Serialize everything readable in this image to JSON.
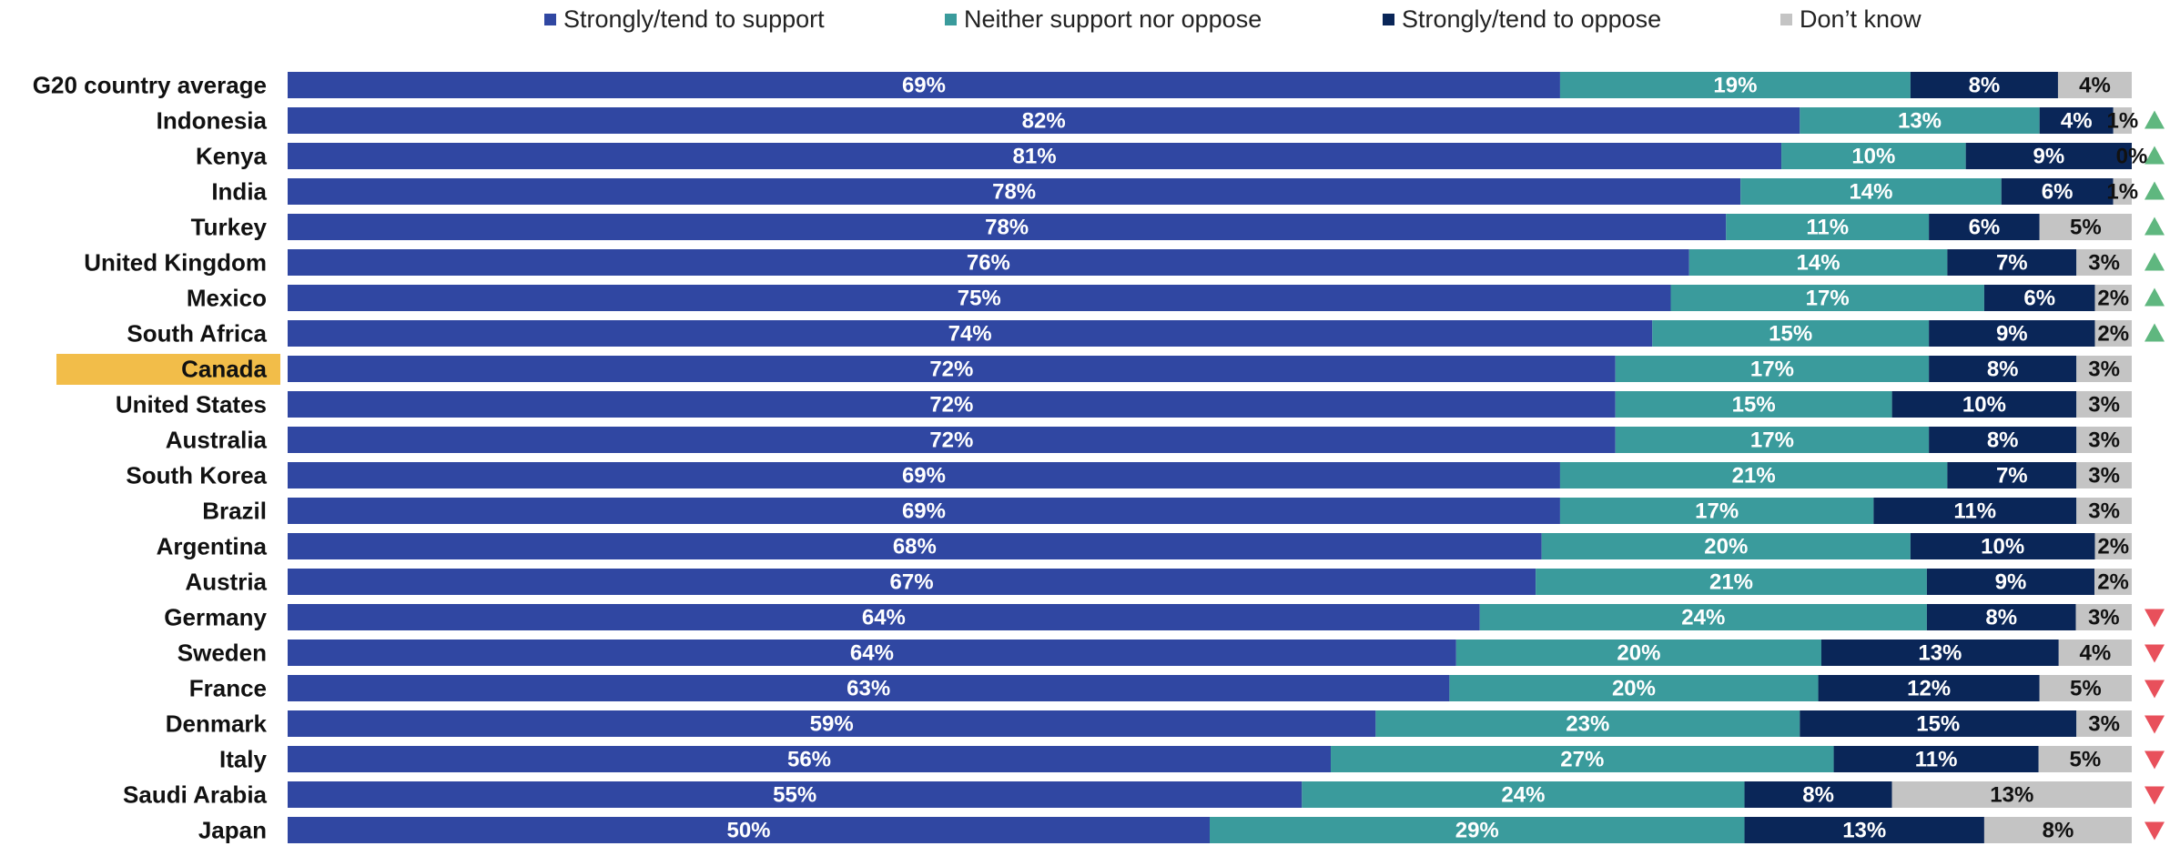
{
  "chart_data": {
    "type": "bar",
    "orientation": "horizontal",
    "stacked": true,
    "percent_stacked": true,
    "legend_position": "top",
    "highlight_category": "Canada",
    "series": [
      {
        "name": "Strongly/tend to support",
        "color": "#3047a2",
        "values": [
          69,
          82,
          81,
          78,
          78,
          76,
          75,
          74,
          72,
          72,
          72,
          69,
          69,
          68,
          67,
          64,
          64,
          63,
          59,
          56,
          55,
          50
        ],
        "labels": [
          "69%",
          "82%",
          "81%",
          "78%",
          "78%",
          "76%",
          "75%",
          "74%",
          "72%",
          "72%",
          "72%",
          "69%",
          "69%",
          "68%",
          "67%",
          "64%",
          "64%",
          "63%",
          "59%",
          "56%",
          "55%",
          "50%"
        ]
      },
      {
        "name": "Neither support nor oppose",
        "color": "#3a9b9c",
        "values": [
          19,
          13,
          10,
          14,
          11,
          14,
          17,
          15,
          17,
          15,
          17,
          21,
          17,
          20,
          21,
          24,
          20,
          20,
          23,
          27,
          24,
          29
        ],
        "labels": [
          "19%",
          "13%",
          "10%",
          "14%",
          "11%",
          "14%",
          "17%",
          "15%",
          "17%",
          "15%",
          "17%",
          "21%",
          "17%",
          "20%",
          "21%",
          "24%",
          "20%",
          "20%",
          "23%",
          "27%",
          "24%",
          "29%"
        ]
      },
      {
        "name": "Strongly/tend to oppose",
        "color": "#0a2658",
        "values": [
          8,
          4,
          9,
          6,
          6,
          7,
          6,
          9,
          8,
          10,
          8,
          7,
          11,
          10,
          9,
          8,
          13,
          12,
          15,
          11,
          8,
          13
        ],
        "labels": [
          "8%",
          "4%",
          "9%",
          "6%",
          "6%",
          "7%",
          "6%",
          "9%",
          "8%",
          "10%",
          "8%",
          "7%",
          "11%",
          "10%",
          "9%",
          "8%",
          "13%",
          "12%",
          "15%",
          "11%",
          "8%",
          "13%"
        ]
      },
      {
        "name": "Don’t know",
        "color": "#c4c4c4",
        "values": [
          4,
          1,
          0,
          1,
          5,
          3,
          2,
          2,
          3,
          3,
          3,
          3,
          3,
          2,
          2,
          3,
          4,
          5,
          3,
          5,
          13,
          8
        ],
        "labels": [
          "4%",
          "1%",
          "0%",
          "1%",
          "5%",
          "3%",
          "2%",
          "2%",
          "3%",
          "3%",
          "3%",
          "3%",
          "3%",
          "2%",
          "2%",
          "3%",
          "4%",
          "5%",
          "3%",
          "5%",
          "13%",
          "8%"
        ]
      }
    ],
    "categories": [
      "G20 country average",
      "Indonesia",
      "Kenya",
      "India",
      "Turkey",
      "United Kingdom",
      "Mexico",
      "South Africa",
      "Canada",
      "United States",
      "Australia",
      "South Korea",
      "Brazil",
      "Argentina",
      "Austria",
      "Germany",
      "Sweden",
      "France",
      "Denmark",
      "Italy",
      "Saudi Arabia",
      "Japan"
    ],
    "trend_markers": [
      "",
      "up",
      "up",
      "up",
      "up",
      "up",
      "up",
      "up",
      "",
      "",
      "",
      "",
      "",
      "",
      "",
      "down",
      "down",
      "down",
      "down",
      "down",
      "down",
      "down"
    ],
    "marker_colors": {
      "up": "#5fb77f",
      "down": "#e8505b"
    },
    "highlight_color": "#f2bd49",
    "label_colors": {
      "light": "#ffffff",
      "dark": "#111111"
    }
  }
}
